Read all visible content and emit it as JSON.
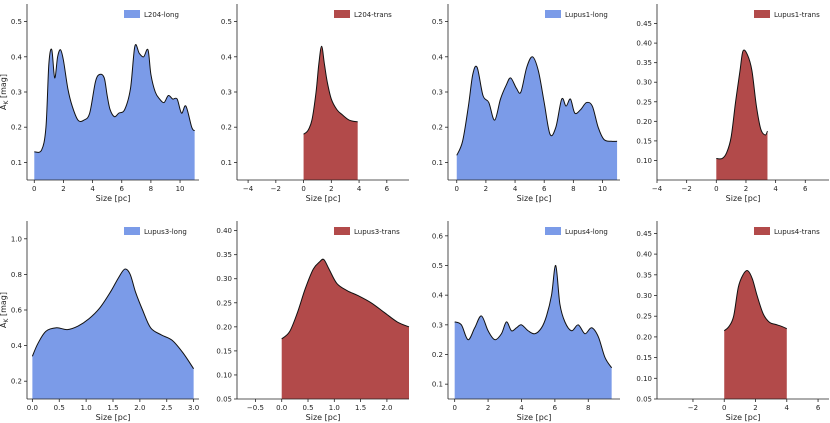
{
  "chart_data": [
    {
      "type": "area",
      "legend": "L204-long",
      "color": "#7b9be8",
      "xlabel": "Size [pc]",
      "ylabel": "A_K [mag]",
      "xlim": [
        -0.5,
        11.3
      ],
      "ylim": [
        0.05,
        0.55
      ],
      "xticks": [
        0,
        2,
        4,
        6,
        8,
        10
      ],
      "yticks": [
        0.1,
        0.2,
        0.3,
        0.4,
        0.5
      ],
      "x": [
        0,
        0.5,
        0.8,
        1.0,
        1.2,
        1.4,
        1.6,
        1.8,
        2.0,
        2.3,
        2.6,
        3.0,
        3.4,
        3.8,
        4.2,
        4.5,
        4.8,
        5.0,
        5.2,
        5.5,
        5.8,
        6.2,
        6.6,
        6.9,
        7.2,
        7.5,
        7.8,
        8.0,
        8.3,
        8.6,
        8.9,
        9.2,
        9.5,
        9.8,
        10.1,
        10.4,
        10.8,
        11.0
      ],
      "y": [
        0.13,
        0.135,
        0.2,
        0.38,
        0.42,
        0.34,
        0.4,
        0.42,
        0.39,
        0.31,
        0.26,
        0.22,
        0.22,
        0.24,
        0.33,
        0.35,
        0.34,
        0.29,
        0.25,
        0.23,
        0.24,
        0.25,
        0.31,
        0.43,
        0.41,
        0.4,
        0.42,
        0.35,
        0.3,
        0.28,
        0.27,
        0.29,
        0.28,
        0.28,
        0.24,
        0.26,
        0.2,
        0.19
      ]
    },
    {
      "type": "area",
      "legend": "L204-trans",
      "color": "#b24a4a",
      "xlabel": "Size [pc]",
      "ylabel": "",
      "xlim": [
        -4.8,
        7.6
      ],
      "ylim": [
        0.05,
        0.55
      ],
      "xticks": [
        -4,
        -2,
        0,
        2,
        4,
        6
      ],
      "yticks": [
        0.1,
        0.2,
        0.3,
        0.4,
        0.5
      ],
      "x": [
        0,
        0.3,
        0.6,
        0.9,
        1.1,
        1.3,
        1.5,
        1.7,
        2.0,
        2.4,
        2.8,
        3.3,
        3.9
      ],
      "y": [
        0.18,
        0.19,
        0.22,
        0.3,
        0.38,
        0.43,
        0.38,
        0.33,
        0.28,
        0.25,
        0.235,
        0.22,
        0.215
      ]
    },
    {
      "type": "area",
      "legend": "Lupus1-long",
      "color": "#7b9be8",
      "xlabel": "Size [pc]",
      "ylabel": "",
      "xlim": [
        -0.6,
        11.2
      ],
      "ylim": [
        0.05,
        0.55
      ],
      "xticks": [
        0,
        2,
        4,
        6,
        8,
        10
      ],
      "yticks": [
        0.1,
        0.2,
        0.3,
        0.4,
        0.5
      ],
      "x": [
        0,
        0.4,
        0.8,
        1.1,
        1.4,
        1.8,
        2.2,
        2.6,
        3.0,
        3.4,
        3.7,
        4.1,
        4.4,
        4.8,
        5.2,
        5.6,
        6.0,
        6.4,
        6.8,
        7.2,
        7.5,
        7.8,
        8.1,
        8.5,
        8.9,
        9.3,
        9.7,
        10.1,
        10.6,
        11.0
      ],
      "y": [
        0.12,
        0.16,
        0.26,
        0.35,
        0.37,
        0.29,
        0.27,
        0.22,
        0.28,
        0.32,
        0.34,
        0.31,
        0.3,
        0.37,
        0.4,
        0.36,
        0.27,
        0.18,
        0.2,
        0.28,
        0.26,
        0.28,
        0.24,
        0.25,
        0.27,
        0.26,
        0.2,
        0.165,
        0.16,
        0.16
      ]
    },
    {
      "type": "area",
      "legend": "Lupus1-trans",
      "color": "#b24a4a",
      "xlabel": "Size [pc]",
      "ylabel": "",
      "xlim": [
        -4.0,
        7.6
      ],
      "ylim": [
        0.05,
        0.5
      ],
      "xticks": [
        -4,
        -2,
        0,
        2,
        4,
        6
      ],
      "yticks": [
        0.1,
        0.15,
        0.2,
        0.25,
        0.3,
        0.35,
        0.4,
        0.45
      ],
      "x": [
        0,
        0.4,
        0.7,
        1.0,
        1.3,
        1.6,
        1.8,
        2.1,
        2.4,
        2.7,
        3.0,
        3.3,
        3.45
      ],
      "y": [
        0.105,
        0.105,
        0.12,
        0.16,
        0.25,
        0.33,
        0.38,
        0.37,
        0.33,
        0.24,
        0.18,
        0.165,
        0.175
      ]
    },
    {
      "type": "area",
      "legend": "Lupus3-long",
      "color": "#7b9be8",
      "xlabel": "Size [pc]",
      "ylabel": "A_K [mag]",
      "xlim": [
        -0.1,
        3.1
      ],
      "ylim": [
        0.1,
        1.1
      ],
      "xticks": [
        0.0,
        0.5,
        1.0,
        1.5,
        2.0,
        2.5,
        3.0
      ],
      "yticks": [
        0.2,
        0.4,
        0.6,
        0.8,
        1.0
      ],
      "x": [
        0,
        0.1,
        0.25,
        0.45,
        0.65,
        0.85,
        1.05,
        1.25,
        1.45,
        1.6,
        1.72,
        1.82,
        1.92,
        2.05,
        2.2,
        2.4,
        2.6,
        2.8,
        3.0
      ],
      "y": [
        0.34,
        0.41,
        0.48,
        0.5,
        0.49,
        0.51,
        0.55,
        0.61,
        0.7,
        0.78,
        0.83,
        0.8,
        0.7,
        0.6,
        0.5,
        0.46,
        0.43,
        0.36,
        0.27
      ]
    },
    {
      "type": "area",
      "legend": "Lupus3-trans",
      "color": "#b24a4a",
      "xlabel": "Size [pc]",
      "ylabel": "",
      "xlim": [
        -0.85,
        2.42
      ],
      "ylim": [
        0.05,
        0.42
      ],
      "xticks": [
        -0.5,
        0.0,
        0.5,
        1.0,
        1.5,
        2.0
      ],
      "yticks": [
        0.05,
        0.1,
        0.15,
        0.2,
        0.25,
        0.3,
        0.35,
        0.4
      ],
      "x": [
        0,
        0.15,
        0.3,
        0.45,
        0.6,
        0.72,
        0.8,
        0.9,
        1.05,
        1.25,
        1.45,
        1.7,
        1.95,
        2.2,
        2.42
      ],
      "y": [
        0.175,
        0.19,
        0.23,
        0.28,
        0.32,
        0.335,
        0.34,
        0.32,
        0.29,
        0.275,
        0.265,
        0.25,
        0.23,
        0.21,
        0.2
      ]
    },
    {
      "type": "area",
      "legend": "Lupus4-long",
      "color": "#7b9be8",
      "xlabel": "Size [pc]",
      "ylabel": "",
      "xlim": [
        -0.4,
        9.9
      ],
      "ylim": [
        0.05,
        0.65
      ],
      "xticks": [
        0,
        2,
        4,
        6,
        8
      ],
      "yticks": [
        0.1,
        0.2,
        0.3,
        0.4,
        0.5,
        0.6
      ],
      "x": [
        0,
        0.4,
        0.8,
        1.2,
        1.6,
        2.0,
        2.4,
        2.8,
        3.1,
        3.4,
        3.7,
        4.0,
        4.4,
        4.8,
        5.2,
        5.5,
        5.8,
        6.05,
        6.3,
        6.6,
        7.0,
        7.4,
        7.8,
        8.2,
        8.6,
        9.0,
        9.4
      ],
      "y": [
        0.31,
        0.3,
        0.25,
        0.29,
        0.33,
        0.28,
        0.25,
        0.27,
        0.31,
        0.28,
        0.29,
        0.3,
        0.28,
        0.27,
        0.29,
        0.33,
        0.4,
        0.5,
        0.37,
        0.31,
        0.28,
        0.3,
        0.27,
        0.29,
        0.26,
        0.19,
        0.155
      ]
    },
    {
      "type": "area",
      "legend": "Lupus4-trans",
      "color": "#b24a4a",
      "xlabel": "Size [pc]",
      "ylabel": "",
      "xlim": [
        -4.3,
        6.7
      ],
      "ylim": [
        0.05,
        0.48
      ],
      "xticks": [
        -2,
        0,
        2,
        4,
        6
      ],
      "yticks": [
        0.05,
        0.1,
        0.15,
        0.2,
        0.25,
        0.3,
        0.35,
        0.4,
        0.45
      ],
      "x": [
        0,
        0.3,
        0.6,
        0.9,
        1.2,
        1.5,
        1.8,
        2.1,
        2.5,
        2.9,
        3.3,
        3.7,
        4.0
      ],
      "y": [
        0.215,
        0.225,
        0.25,
        0.32,
        0.35,
        0.36,
        0.34,
        0.3,
        0.255,
        0.235,
        0.23,
        0.225,
        0.22
      ]
    }
  ]
}
